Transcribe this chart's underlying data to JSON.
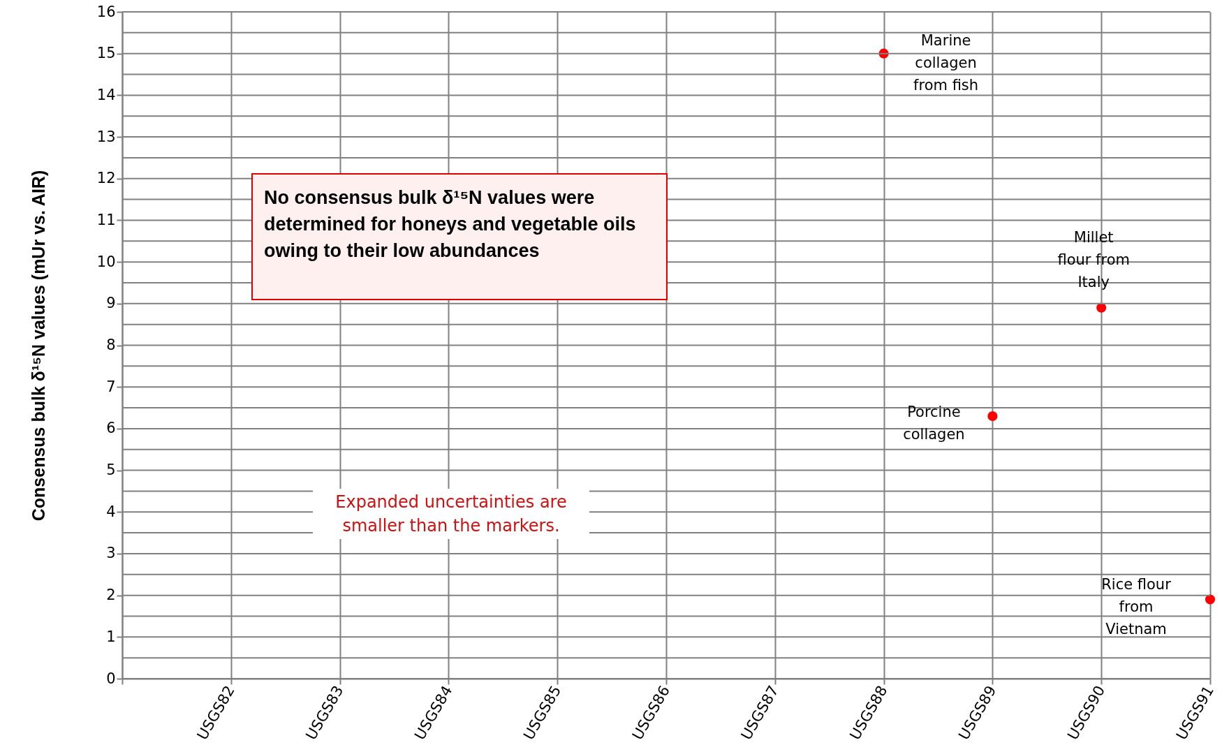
{
  "chart_data": {
    "type": "scatter",
    "ylabel": "Consensus bulk δ¹⁵N values (mUr vs. AIR)",
    "categories": [
      null,
      "USGS82",
      "USGS83",
      "USGS84",
      "USGS85",
      "USGS86",
      "USGS87",
      "USGS88",
      "USGS89",
      "USGS90",
      "USGS91"
    ],
    "series": [
      {
        "color": "#ff0000",
        "values": [
          null,
          null,
          null,
          null,
          null,
          null,
          null,
          15.0,
          6.3,
          8.9,
          1.9
        ]
      }
    ],
    "ylim": [
      0,
      16
    ],
    "yticks": [
      0,
      {
        "value": 0.5,
        "label": null
      },
      1,
      {
        "value": 1.5,
        "label": null
      },
      2,
      {
        "value": 2.5,
        "label": null
      },
      3,
      {
        "value": 3.5,
        "label": null
      },
      4,
      {
        "value": 4.5,
        "label": null
      },
      5,
      {
        "value": 5.5,
        "label": null
      },
      6,
      {
        "value": 6.5,
        "label": null
      },
      7,
      {
        "value": 7.5,
        "label": null
      },
      8,
      {
        "value": 8.5,
        "label": null
      },
      9,
      {
        "value": 9.5,
        "label": null
      },
      10,
      {
        "value": 10.5,
        "label": null
      },
      11,
      {
        "value": 11.5,
        "label": null
      },
      12,
      {
        "value": 12.5,
        "label": null
      },
      13,
      {
        "value": 13.5,
        "label": null
      },
      14,
      {
        "value": 14.5,
        "label": null
      },
      15,
      {
        "value": 15.5,
        "label": null
      },
      16
    ],
    "grid": true,
    "marker": "circle",
    "annotations": [
      {
        "text": "Marine collagen from fish",
        "x": "USGS88",
        "y": 15.0
      },
      {
        "text": "Millet flour from Italy",
        "x": "USGS90",
        "y": 8.9
      },
      {
        "text": "Porcine collagen",
        "x": "USGS89",
        "y": 6.3
      },
      {
        "text": "Rice flour from Vietnam",
        "x": "USGS91",
        "y": 1.9
      },
      "No consensus bulk δ¹⁵N values were determined for honeys and vegetable oils owing to their low abundances",
      "Expanded uncertainties are smaller than the markers."
    ]
  }
}
